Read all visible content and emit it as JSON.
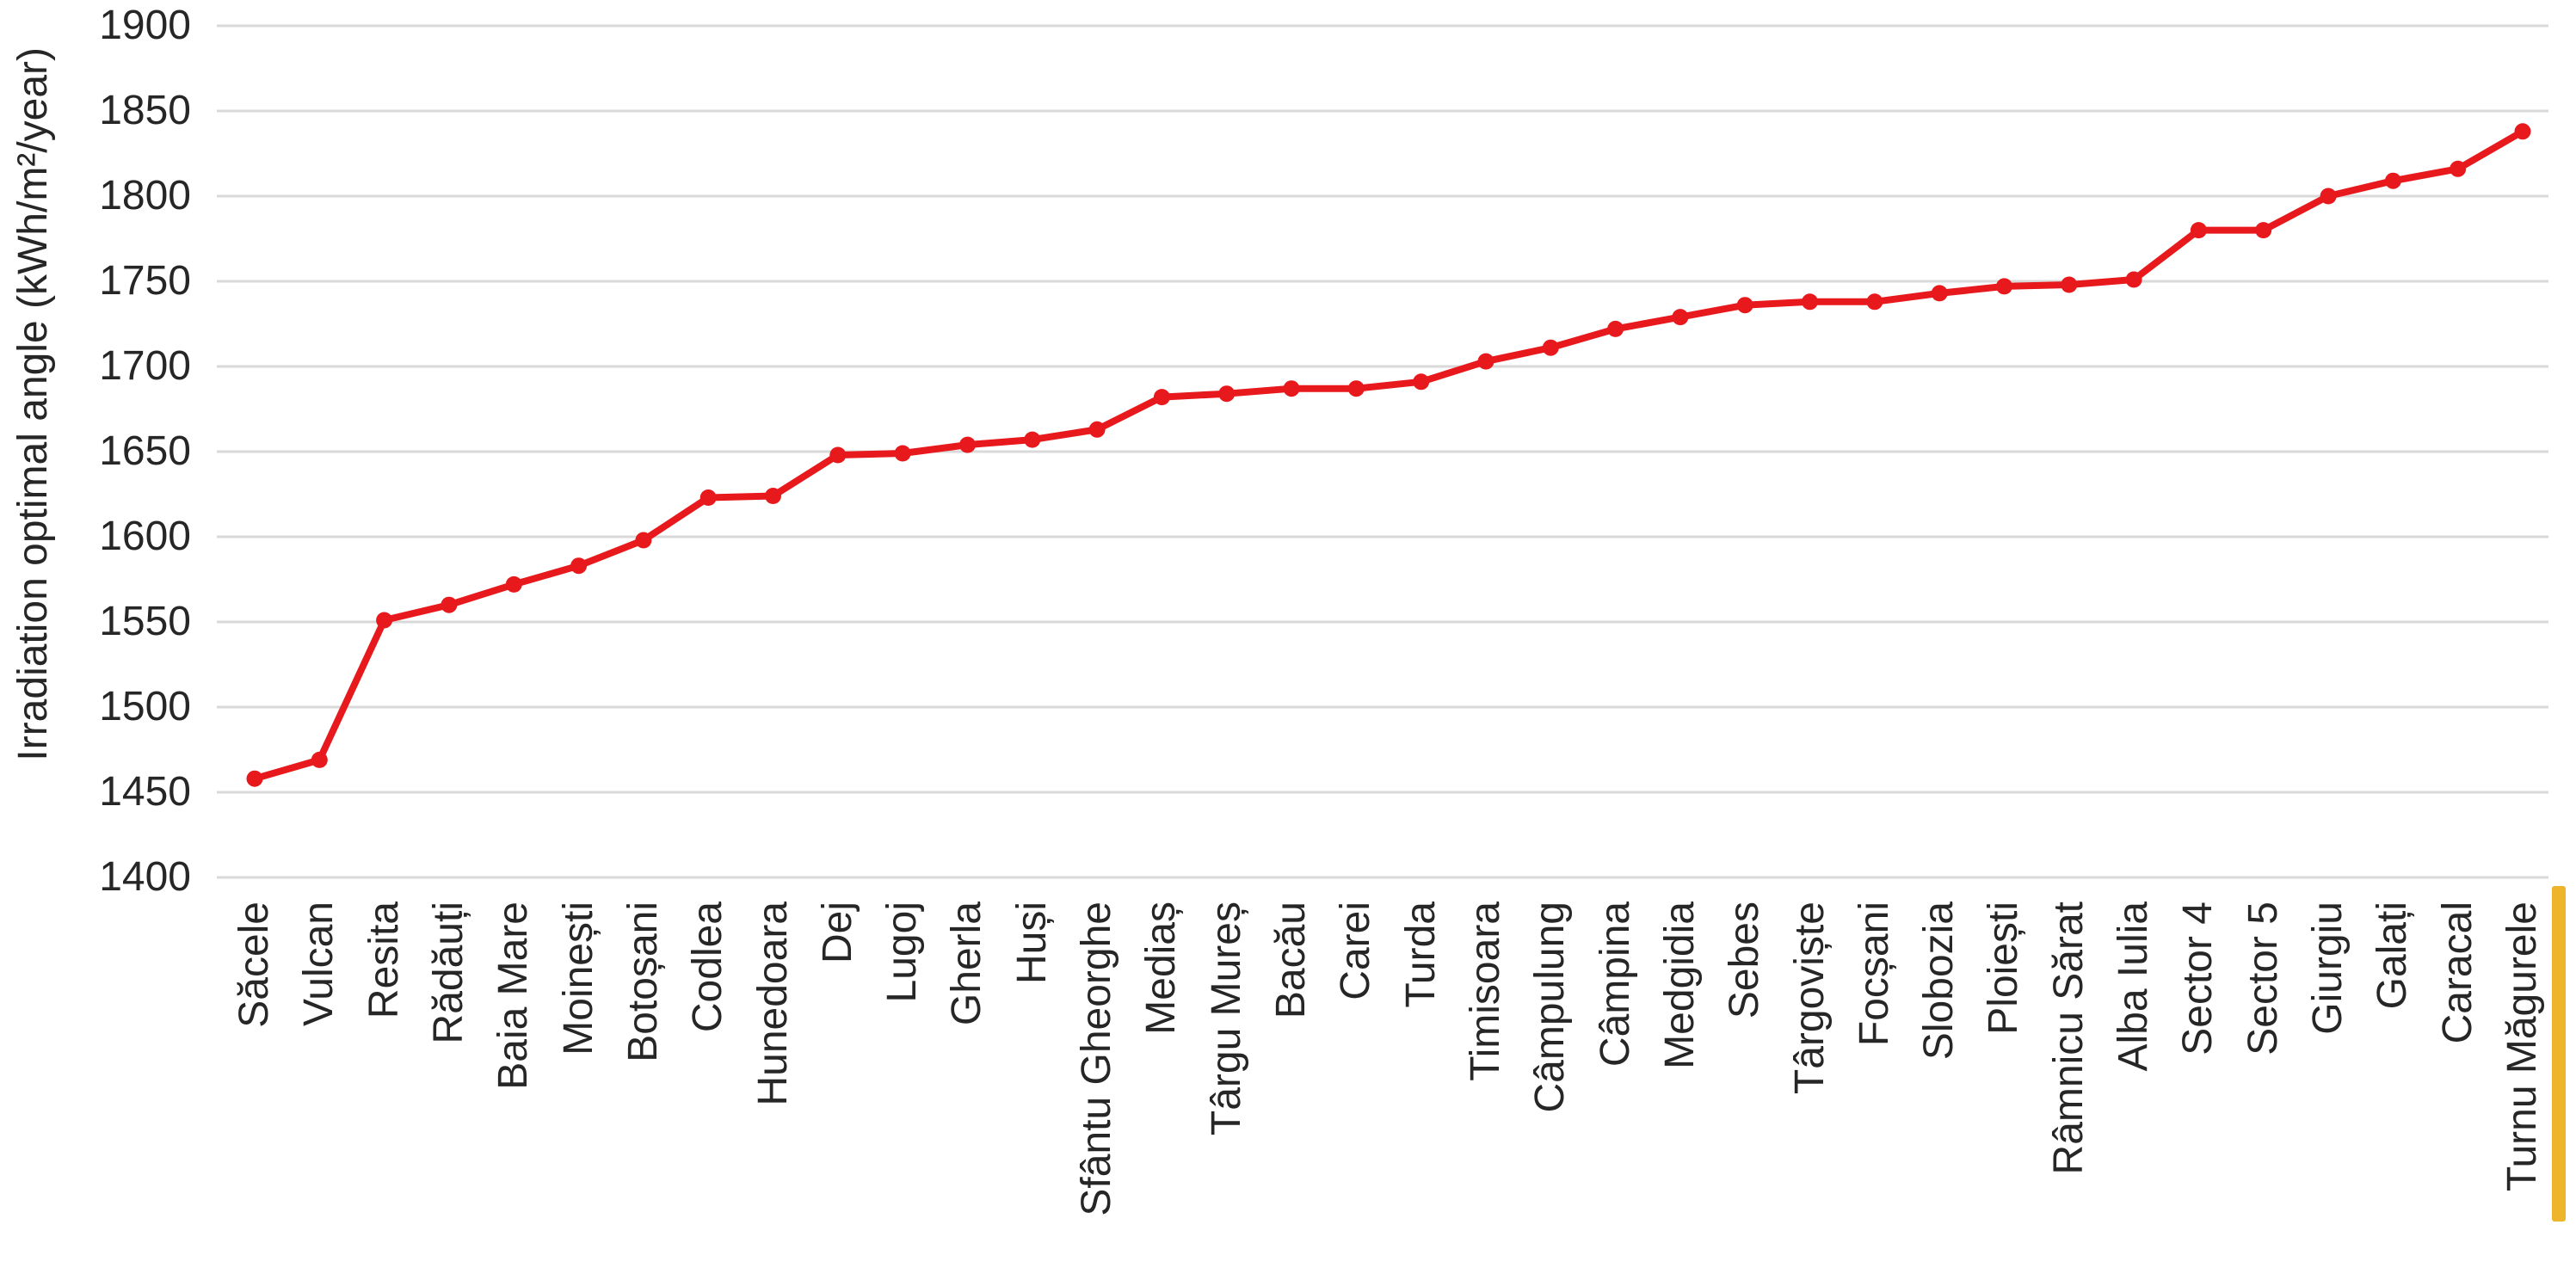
{
  "chart_data": {
    "type": "line",
    "title": "",
    "xlabel": "",
    "ylabel": "Irradiation optimal angle (kWh/m²/year)",
    "categories": [
      "Săcele",
      "Vulcan",
      "Resita",
      "Rădăuți",
      "Baia Mare",
      "Moinești",
      "Botoșani",
      "Codlea",
      "Hunedoara",
      "Dej",
      "Lugoj",
      "Gherla",
      "Huși",
      "Sfântu Gheorghe",
      "Mediaș",
      "Târgu Mureș",
      "Bacău",
      "Carei",
      "Turda",
      "Timisoara",
      "Câmpulung",
      "Câmpina",
      "Medgidia",
      "Sebes",
      "Târgoviște",
      "Focșani",
      "Slobozia",
      "Ploiești",
      "Râmnicu Sărat",
      "Alba Iulia",
      "Sector 4",
      "Sector 5",
      "Giurgiu",
      "Galați",
      "Caracal",
      "Turnu Măgurele"
    ],
    "series": [
      {
        "name": "Irradiation optimal angle",
        "values": [
          1458,
          1469,
          1551,
          1560,
          1572,
          1583,
          1598,
          1623,
          1624,
          1648,
          1649,
          1654,
          1657,
          1663,
          1682,
          1684,
          1687,
          1687,
          1691,
          1703,
          1711,
          1722,
          1729,
          1736,
          1738,
          1738,
          1743,
          1747,
          1748,
          1751,
          1780,
          1780,
          1800,
          1809,
          1816,
          1838
        ]
      }
    ],
    "ylim": [
      1400,
      1900
    ],
    "y_ticks": [
      1900,
      1850,
      1800,
      1750,
      1700,
      1650,
      1600,
      1550,
      1500,
      1450,
      1400
    ],
    "grid": "horizontal",
    "legend_position": "none",
    "marker": "circle",
    "styles": {
      "line_color": "#e8191c",
      "marker_color": "#e8191c",
      "grid_color": "#d9d9d9",
      "text_color": "#262626",
      "highlight_bar_color": "#eeb42a",
      "background": "#ffffff"
    },
    "annotations": [
      {
        "name": "highlight-bar",
        "description": "vertical gold bar at the right edge beside the last category label (Turnu Măgurele)"
      }
    ]
  }
}
